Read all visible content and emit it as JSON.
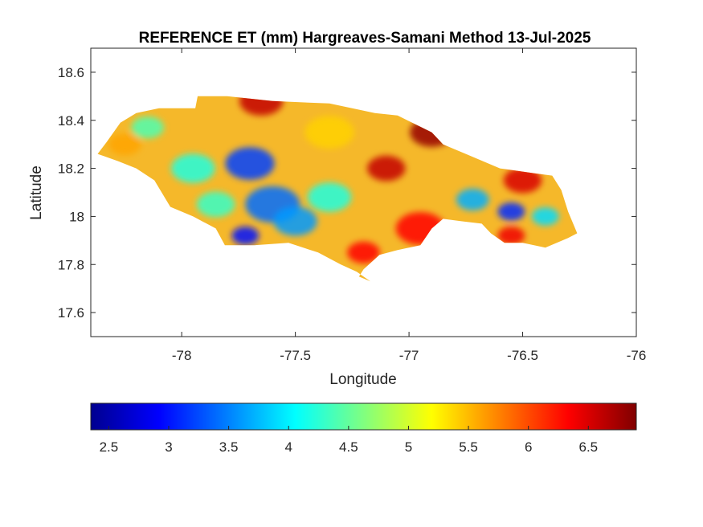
{
  "title": "REFERENCE ET (mm) Hargreaves-Samani Method  13-Jul-2025",
  "axes": {
    "xlabel": "Longitude",
    "ylabel": "Latitude",
    "xlim": [
      -78.4,
      -76.0
    ],
    "ylim": [
      17.5,
      18.7
    ],
    "xticks": [
      -78,
      -77.5,
      -77,
      -76.5,
      -76
    ],
    "xtick_labels": [
      "-78",
      "-77.5",
      "-77",
      "-76.5",
      "-76"
    ],
    "yticks": [
      17.6,
      17.8,
      18.0,
      18.2,
      18.4,
      18.6
    ],
    "ytick_labels": [
      "17.6",
      "17.8",
      "18",
      "18.2",
      "18.4",
      "18.6"
    ],
    "grid": false,
    "box": true
  },
  "colorbar": {
    "colormap": "jet",
    "location": "bottom",
    "range": [
      2.35,
      6.9
    ],
    "ticks": [
      2.5,
      3,
      3.5,
      4,
      4.5,
      5,
      5.5,
      6,
      6.5
    ],
    "tick_labels": [
      "2.5",
      "3",
      "3.5",
      "4",
      "4.5",
      "5",
      "5.5",
      "6",
      "6.5"
    ]
  },
  "map": {
    "region": "Jamaica",
    "variable": "Reference evapotranspiration",
    "units": "mm",
    "value_range": [
      2.6,
      6.9
    ],
    "outline_lonlat": [
      [
        -78.37,
        18.26
      ],
      [
        -78.33,
        18.31
      ],
      [
        -78.27,
        18.39
      ],
      [
        -78.2,
        18.43
      ],
      [
        -78.1,
        18.45
      ],
      [
        -77.94,
        18.45
      ],
      [
        -77.93,
        18.5
      ],
      [
        -77.8,
        18.5
      ],
      [
        -77.6,
        18.48
      ],
      [
        -77.35,
        18.47
      ],
      [
        -77.15,
        18.43
      ],
      [
        -77.05,
        18.42
      ],
      [
        -76.9,
        18.35
      ],
      [
        -76.85,
        18.3
      ],
      [
        -76.75,
        18.26
      ],
      [
        -76.6,
        18.2
      ],
      [
        -76.45,
        18.18
      ],
      [
        -76.37,
        18.17
      ],
      [
        -76.33,
        18.11
      ],
      [
        -76.3,
        18.02
      ],
      [
        -76.26,
        17.93
      ],
      [
        -76.3,
        17.91
      ],
      [
        -76.4,
        17.87
      ],
      [
        -76.5,
        17.89
      ],
      [
        -76.58,
        17.89
      ],
      [
        -76.64,
        17.93
      ],
      [
        -76.68,
        17.97
      ],
      [
        -76.77,
        17.98
      ],
      [
        -76.85,
        17.99
      ],
      [
        -76.9,
        17.95
      ],
      [
        -76.95,
        17.88
      ],
      [
        -77.05,
        17.86
      ],
      [
        -77.13,
        17.84
      ],
      [
        -77.2,
        17.78
      ],
      [
        -77.22,
        17.75
      ],
      [
        -77.17,
        17.73
      ],
      [
        -77.23,
        17.77
      ],
      [
        -77.3,
        17.8
      ],
      [
        -77.4,
        17.85
      ],
      [
        -77.53,
        17.89
      ],
      [
        -77.68,
        17.88
      ],
      [
        -77.81,
        17.88
      ],
      [
        -77.85,
        17.95
      ],
      [
        -77.95,
        18.0
      ],
      [
        -78.05,
        18.04
      ],
      [
        -78.12,
        18.15
      ],
      [
        -78.2,
        18.2
      ],
      [
        -78.28,
        18.23
      ]
    ],
    "hotspots": [
      {
        "lon": -77.7,
        "lat": 18.22,
        "value": 3.2,
        "r": 0.09
      },
      {
        "lon": -77.6,
        "lat": 18.05,
        "value": 3.4,
        "r": 0.1
      },
      {
        "lon": -77.72,
        "lat": 17.92,
        "value": 3.0,
        "r": 0.05
      },
      {
        "lon": -77.5,
        "lat": 17.98,
        "value": 3.6,
        "r": 0.08
      },
      {
        "lon": -77.95,
        "lat": 18.2,
        "value": 4.2,
        "r": 0.08
      },
      {
        "lon": -78.15,
        "lat": 18.37,
        "value": 4.4,
        "r": 0.06
      },
      {
        "lon": -77.35,
        "lat": 18.08,
        "value": 4.2,
        "r": 0.08
      },
      {
        "lon": -77.85,
        "lat": 18.05,
        "value": 4.3,
        "r": 0.07
      },
      {
        "lon": -76.72,
        "lat": 18.07,
        "value": 3.7,
        "r": 0.06
      },
      {
        "lon": -76.55,
        "lat": 18.02,
        "value": 3.1,
        "r": 0.05
      },
      {
        "lon": -76.4,
        "lat": 18.0,
        "value": 3.9,
        "r": 0.05
      },
      {
        "lon": -77.65,
        "lat": 18.48,
        "value": 6.6,
        "r": 0.08
      },
      {
        "lon": -76.9,
        "lat": 18.35,
        "value": 6.8,
        "r": 0.08
      },
      {
        "lon": -77.1,
        "lat": 18.2,
        "value": 6.6,
        "r": 0.07
      },
      {
        "lon": -76.5,
        "lat": 18.15,
        "value": 6.5,
        "r": 0.07
      },
      {
        "lon": -76.95,
        "lat": 17.95,
        "value": 6.3,
        "r": 0.09
      },
      {
        "lon": -77.2,
        "lat": 17.85,
        "value": 6.3,
        "r": 0.06
      },
      {
        "lon": -76.55,
        "lat": 17.92,
        "value": 6.4,
        "r": 0.05
      },
      {
        "lon": -77.35,
        "lat": 18.35,
        "value": 5.4,
        "r": 0.09
      },
      {
        "lon": -78.25,
        "lat": 18.3,
        "value": 5.6,
        "r": 0.06
      }
    ]
  }
}
